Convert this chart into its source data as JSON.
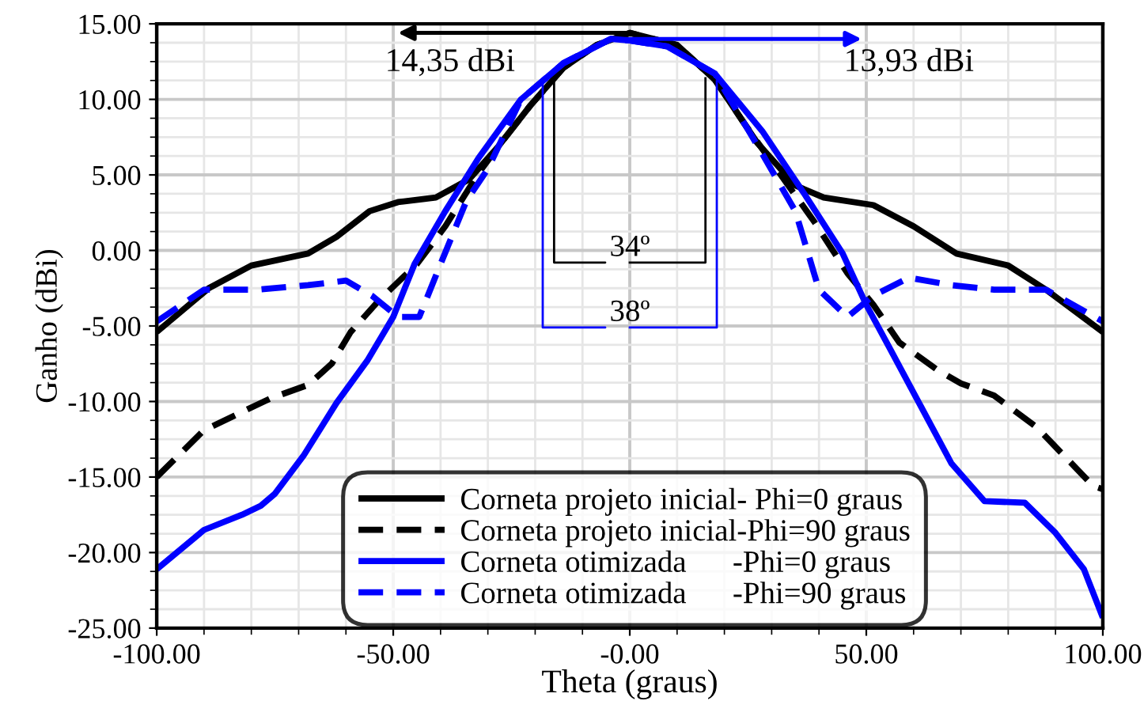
{
  "chart_data": {
    "type": "line",
    "xlabel": "Theta (graus)",
    "ylabel": "Ganho (dBi)",
    "xlim": [
      -100,
      100
    ],
    "ylim": [
      -25,
      15
    ],
    "xticks": [
      {
        "value": -100,
        "label": "-100.00"
      },
      {
        "value": -50,
        "label": "-50.00"
      },
      {
        "value": 0,
        "label": "-0.00"
      },
      {
        "value": 50,
        "label": "50.00"
      },
      {
        "value": 100,
        "label": "100.00"
      }
    ],
    "yticks": [
      {
        "value": -25,
        "label": "-25.00"
      },
      {
        "value": -20,
        "label": "-20.00"
      },
      {
        "value": -15,
        "label": "-15.00"
      },
      {
        "value": -10,
        "label": "-10.00"
      },
      {
        "value": -5,
        "label": "-5.00"
      },
      {
        "value": 0,
        "label": "0.00"
      },
      {
        "value": 5,
        "label": "5.00"
      },
      {
        "value": 10,
        "label": "10.00"
      },
      {
        "value": 15,
        "label": "15.00"
      }
    ],
    "grid": true,
    "legend": "bottom",
    "series": [
      {
        "name": "Corneta projeto inicial- Phi=0 graus",
        "color": "#000000",
        "line_style": "solid",
        "x": [
          -100,
          -89,
          -80,
          -68,
          -62,
          -55,
          -49,
          -41,
          -34,
          -28,
          -21,
          -14,
          -7,
          0,
          10,
          18,
          27,
          35,
          41,
          51.5,
          60,
          69,
          80,
          88,
          100
        ],
        "values": [
          -5.4,
          -2.5,
          -1.0,
          -0.2,
          0.9,
          2.6,
          3.2,
          3.5,
          4.7,
          6.8,
          9.6,
          12.1,
          13.6,
          14.4,
          13.6,
          11.3,
          7.1,
          4.3,
          3.5,
          3.0,
          1.6,
          -0.2,
          -1.0,
          -2.6,
          -5.4
        ]
      },
      {
        "name": "Corneta projeto inicial-Phi=90 graus",
        "color": "#000000",
        "line_style": "dashed",
        "x": [
          -100,
          -90,
          -82,
          -76,
          -68,
          -63,
          -59,
          -53,
          -45,
          -39,
          -32,
          -28,
          -21,
          -14,
          -7,
          0,
          10,
          18,
          24,
          31,
          39,
          46,
          51.5,
          57,
          65,
          70,
          77,
          86,
          98,
          100
        ],
        "values": [
          -15.0,
          -11.9,
          -10.7,
          -9.8,
          -8.9,
          -7.5,
          -5.4,
          -3.3,
          -0.9,
          1.6,
          5.1,
          6.8,
          9.6,
          12.1,
          13.6,
          14.4,
          13.6,
          11.3,
          8.5,
          5.4,
          1.9,
          -1.5,
          -3.6,
          -6.1,
          -7.9,
          -8.8,
          -9.6,
          -11.7,
          -15.6,
          -15.8
        ]
      },
      {
        "name": "Corneta otimizada      -Phi=0 graus",
        "color": "#0000ff",
        "line_style": "solid",
        "x": [
          -100,
          -90,
          -82,
          -78,
          -75,
          -69,
          -62,
          -55.5,
          -50,
          -45.5,
          -39,
          -32,
          -23,
          -14,
          -4,
          0,
          8,
          18,
          28,
          37,
          45,
          50,
          55,
          61.5,
          68,
          75,
          83.5,
          90,
          96,
          100
        ],
        "values": [
          -21.1,
          -18.5,
          -17.5,
          -16.9,
          -16.1,
          -13.6,
          -10.1,
          -7.3,
          -4.4,
          -0.9,
          2.6,
          6.1,
          10.0,
          12.4,
          14.0,
          13.9,
          13.5,
          11.7,
          7.9,
          3.7,
          -0.2,
          -3.6,
          -6.5,
          -10.3,
          -14.1,
          -16.6,
          -16.7,
          -18.7,
          -21.1,
          -24.3
        ]
      },
      {
        "name": "Corneta otimizada      -Phi=90 graus",
        "color": "#0000ff",
        "line_style": "dashed",
        "x": [
          -100,
          -90,
          -79,
          -68,
          -60,
          -54.5,
          -49,
          -44.5,
          -40,
          -34.5,
          -30,
          -23,
          -14,
          -4,
          0,
          8,
          18,
          28,
          35,
          40,
          46,
          51.5,
          59,
          68,
          77,
          88,
          100
        ],
        "values": [
          -4.7,
          -2.6,
          -2.6,
          -2.3,
          -2.0,
          -3.0,
          -4.4,
          -4.4,
          -0.9,
          3.3,
          5.4,
          10.0,
          12.4,
          14.0,
          13.9,
          13.5,
          11.7,
          6.4,
          2.6,
          -2.6,
          -4.4,
          -3.0,
          -1.8,
          -2.3,
          -2.6,
          -2.6,
          -4.7
        ]
      }
    ],
    "annotations": [
      "14,35 dBi",
      "13,93 dBi",
      {
        "text": "34º",
        "x": -16,
        "y": 11.4
      },
      {
        "text": "38º",
        "x": -18.4,
        "y": 11.2
      }
    ]
  }
}
